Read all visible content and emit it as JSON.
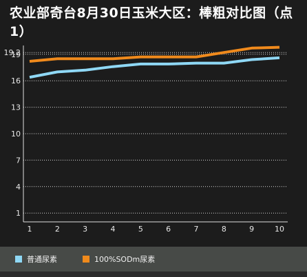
{
  "chart_data": {
    "type": "line",
    "title": "农业部奇台8月30日玉米大区：棒粗对比图（点1）",
    "x": [
      1,
      2,
      3,
      4,
      5,
      6,
      7,
      8,
      9,
      10
    ],
    "yticks": [
      1,
      4,
      7,
      10,
      13,
      16,
      19,
      19.2
    ],
    "ylim": [
      0,
      20
    ],
    "grid": true,
    "legend_position": "bottom",
    "series": [
      {
        "name": "普通尿素",
        "color": "#8fd8f5",
        "values": [
          16.4,
          17.0,
          17.2,
          17.6,
          17.9,
          17.9,
          18.0,
          18.0,
          18.4,
          18.6
        ]
      },
      {
        "name": "100%SODm尿素",
        "color": "#f08a1c",
        "values": [
          18.2,
          18.5,
          18.5,
          18.5,
          18.7,
          18.7,
          18.7,
          19.2,
          19.7,
          19.8
        ]
      }
    ]
  }
}
